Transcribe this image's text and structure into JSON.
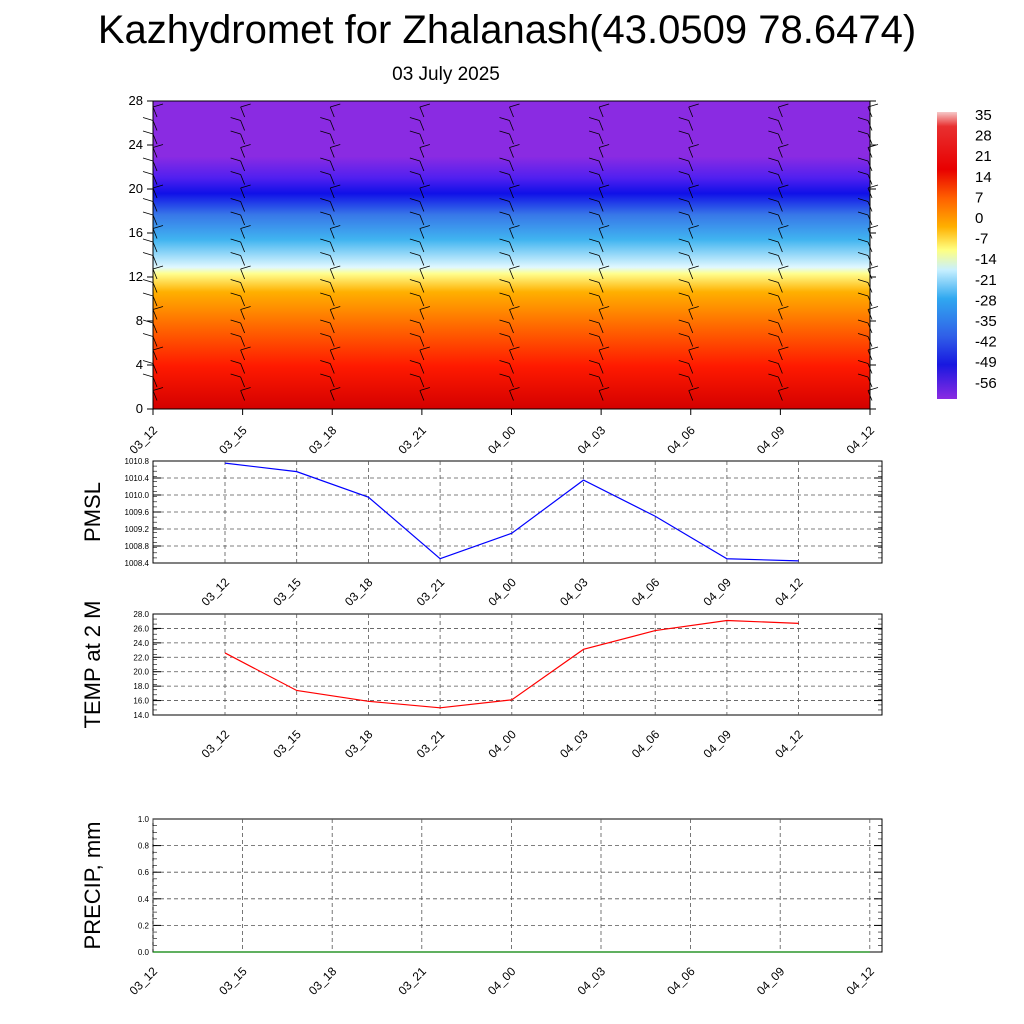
{
  "header": {
    "title": "Kazhydromet for Zhalanash(43.0509 78.6474)",
    "date": "03 July 2025"
  },
  "colorbar": {
    "labels": [
      "35",
      "28",
      "21",
      "14",
      "7",
      "0",
      "-7",
      "-14",
      "-21",
      "-28",
      "-35",
      "-42",
      "-49",
      "-56"
    ]
  },
  "chart_data": [
    {
      "type": "heatmap",
      "title": "",
      "x_ticks": [
        "03_12",
        "03_15",
        "03_18",
        "03_21",
        "04_00",
        "04_03",
        "04_06",
        "04_09",
        "04_12"
      ],
      "y_ticks": [
        0,
        4,
        8,
        12,
        16,
        20,
        24,
        28
      ],
      "ylim": [
        0,
        28
      ],
      "colorbar_range": [
        -56,
        35
      ],
      "description_levels": [
        {
          "height": 0,
          "temp": 28
        },
        {
          "height": 4,
          "temp": 20
        },
        {
          "height": 8,
          "temp": 10
        },
        {
          "height": 12,
          "temp": -5
        },
        {
          "height": 16,
          "temp": -25
        },
        {
          "height": 20,
          "temp": -56
        },
        {
          "height": 24,
          "temp": -65
        },
        {
          "height": 28,
          "temp": -65
        }
      ],
      "wind_barbs": true
    },
    {
      "type": "line",
      "ylabel": "PMSL",
      "x": [
        "03_12",
        "03_15",
        "03_18",
        "03_21",
        "04_00",
        "04_03",
        "04_06",
        "04_09",
        "04_12"
      ],
      "y_ticks": [
        "1010.8",
        "1010.4",
        "1010.0",
        "1009.6",
        "1009.2",
        "1008.8",
        "1008.4"
      ],
      "ylim": [
        1008.4,
        1010.8
      ],
      "series": [
        {
          "values": [
            1010.75,
            1010.55,
            1009.95,
            1008.5,
            1009.1,
            1010.35,
            1009.5,
            1008.5,
            1008.45
          ],
          "color": "#0000ff"
        }
      ],
      "grid": true
    },
    {
      "type": "line",
      "ylabel": "TEMP at 2 M",
      "x": [
        "03_12",
        "03_15",
        "03_18",
        "03_21",
        "04_00",
        "04_03",
        "04_06",
        "04_09",
        "04_12"
      ],
      "y_ticks": [
        "28.0",
        "26.0",
        "24.0",
        "22.0",
        "20.0",
        "18.0",
        "16.0",
        "14.0"
      ],
      "ylim": [
        14,
        28
      ],
      "series": [
        {
          "values": [
            22.6,
            17.4,
            15.9,
            15.0,
            16.1,
            23.1,
            25.7,
            27.1,
            26.7
          ],
          "color": "#ff0000"
        }
      ],
      "grid": true
    },
    {
      "type": "line",
      "ylabel": "PRECIP, mm",
      "x": [
        "03_12",
        "03_15",
        "03_18",
        "03_21",
        "04_00",
        "04_03",
        "04_06",
        "04_09",
        "04_12"
      ],
      "y_ticks": [
        "1.0",
        "0.8",
        "0.6",
        "0.4",
        "0.2",
        "0.0"
      ],
      "ylim": [
        0,
        1
      ],
      "series": [
        {
          "values": [
            0,
            0,
            0,
            0,
            0,
            0,
            0,
            0,
            0
          ],
          "color": "#008000"
        }
      ],
      "grid": true
    }
  ]
}
